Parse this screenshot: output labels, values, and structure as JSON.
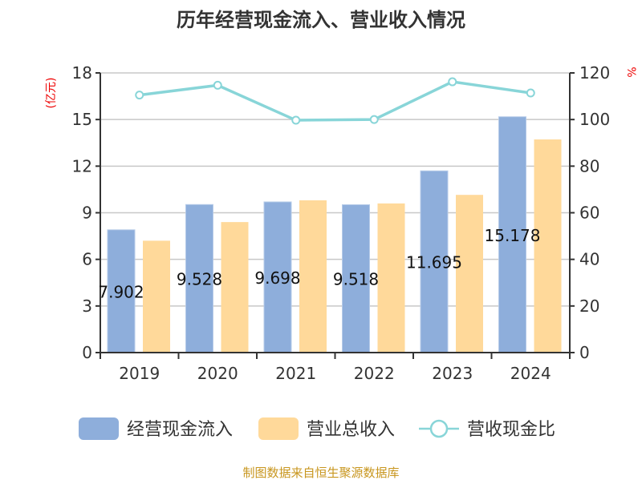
{
  "chart_data": {
    "type": "bar",
    "title": "历年经营现金流入、营业收入情况",
    "ylabel_left": "(亿元)",
    "ylabel_right": "%",
    "categories": [
      "2019",
      "2020",
      "2021",
      "2022",
      "2023",
      "2024"
    ],
    "ylim_left": [
      0,
      18
    ],
    "yticks_left": [
      0,
      3,
      6,
      9,
      12,
      15,
      18
    ],
    "ylim_right": [
      0,
      120
    ],
    "yticks_right": [
      0,
      20,
      40,
      60,
      80,
      100,
      120
    ],
    "grid": true,
    "legend_placement": "bottom",
    "series": [
      {
        "name": "经营现金流入",
        "type": "bar",
        "axis": "left",
        "color": "#8eaedb",
        "values": [
          7.902,
          9.528,
          9.698,
          9.518,
          11.695,
          15.178
        ],
        "labels": [
          "7.902",
          "9.528",
          "9.698",
          "9.518",
          "11.695",
          "15.178"
        ]
      },
      {
        "name": "营业总收入",
        "type": "bar",
        "axis": "left",
        "color": "#ffd99a",
        "values": [
          7.2,
          8.4,
          9.8,
          9.6,
          10.15,
          13.72
        ]
      },
      {
        "name": "营收现金比",
        "type": "line",
        "axis": "right",
        "color": "#88d5d8",
        "values": [
          110.5,
          114.7,
          99.7,
          100,
          116.2,
          111.4
        ]
      }
    ]
  },
  "footer": "制图数据来自恒生聚源数据库"
}
